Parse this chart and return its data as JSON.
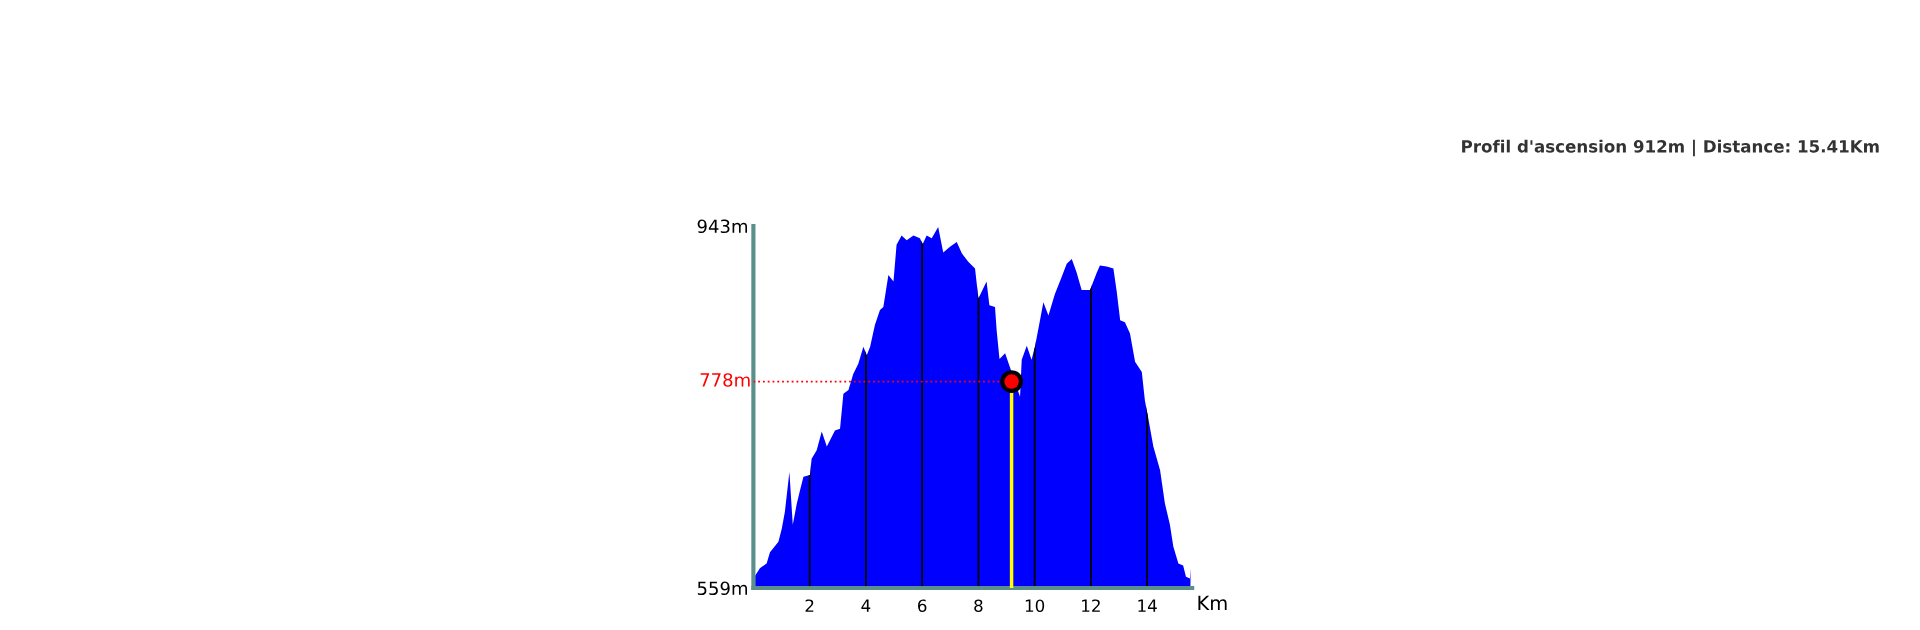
{
  "chart_data": {
    "type": "area",
    "title": "Profil d'ascension 912m | Distance: 15.41Km",
    "xlabel": "Km",
    "xlim": [
      0,
      15.6
    ],
    "xticks": [
      2,
      4,
      6,
      8,
      10,
      12,
      14
    ],
    "ylim": [
      559,
      943
    ],
    "yticks": [
      {
        "value": 943,
        "label": "943m"
      },
      {
        "value": 559,
        "label": "559m"
      }
    ],
    "grid": "x",
    "series": [
      {
        "color": "#0000ff",
        "x": [
          0.06,
          0.23,
          0.47,
          0.59,
          0.89,
          1.01,
          1.12,
          1.28,
          1.4,
          1.54,
          1.66,
          1.78,
          2.01,
          2.07,
          2.25,
          2.43,
          2.61,
          2.9,
          3.08,
          3.2,
          3.38,
          3.55,
          3.73,
          3.91,
          4.03,
          4.15,
          4.32,
          4.5,
          4.62,
          4.8,
          4.98,
          5.09,
          5.27,
          5.45,
          5.69,
          5.92,
          6.02,
          6.16,
          6.34,
          6.57,
          6.75,
          6.99,
          7.23,
          7.41,
          7.64,
          7.88,
          8.0,
          8.29,
          8.39,
          8.59,
          8.65,
          8.75,
          8.95,
          9.1,
          9.48,
          9.54,
          9.72,
          9.89,
          10.01,
          10.19,
          10.31,
          10.49,
          10.72,
          10.96,
          11.14,
          11.32,
          11.49,
          11.67,
          11.97,
          12.2,
          12.32,
          12.56,
          12.8,
          12.92,
          13.04,
          13.21,
          13.39,
          13.57,
          13.81,
          13.92,
          14.04,
          14.22,
          14.46,
          14.63,
          14.81,
          14.93,
          15.11,
          15.28,
          15.38,
          15.52,
          15.54
        ],
        "values": [
          572,
          580,
          585,
          597,
          608,
          622,
          640,
          682,
          626,
          648,
          663,
          677,
          679,
          696,
          705,
          725,
          709,
          726,
          728,
          765,
          769,
          786,
          797,
          815,
          806,
          815,
          838,
          854,
          857,
          891,
          884,
          923,
          933,
          928,
          933,
          930,
          924,
          933,
          930,
          942,
          915,
          921,
          926,
          914,
          905,
          898,
          866,
          884,
          859,
          857,
          832,
          802,
          808,
          795,
          762,
          801,
          816,
          801,
          815,
          843,
          862,
          848,
          871,
          889,
          903,
          908,
          894,
          875,
          875,
          893,
          901,
          900,
          898,
          873,
          843,
          841,
          829,
          799,
          788,
          758,
          739,
          709,
          684,
          649,
          626,
          603,
          585,
          583,
          571,
          569,
          580
        ]
      },
      {
        "type": "scatter",
        "color": "#ff0000",
        "x": [
          9.18
        ],
        "values": [
          778
        ],
        "marker": "circle"
      }
    ],
    "ref_lines": [
      {
        "axis": "y",
        "value": 778,
        "label": "778m",
        "color": "#ff0000",
        "line_style": "dotted"
      },
      {
        "axis": "x",
        "value": 9.18,
        "color": "#ffff00",
        "line_style": "solid"
      }
    ]
  }
}
